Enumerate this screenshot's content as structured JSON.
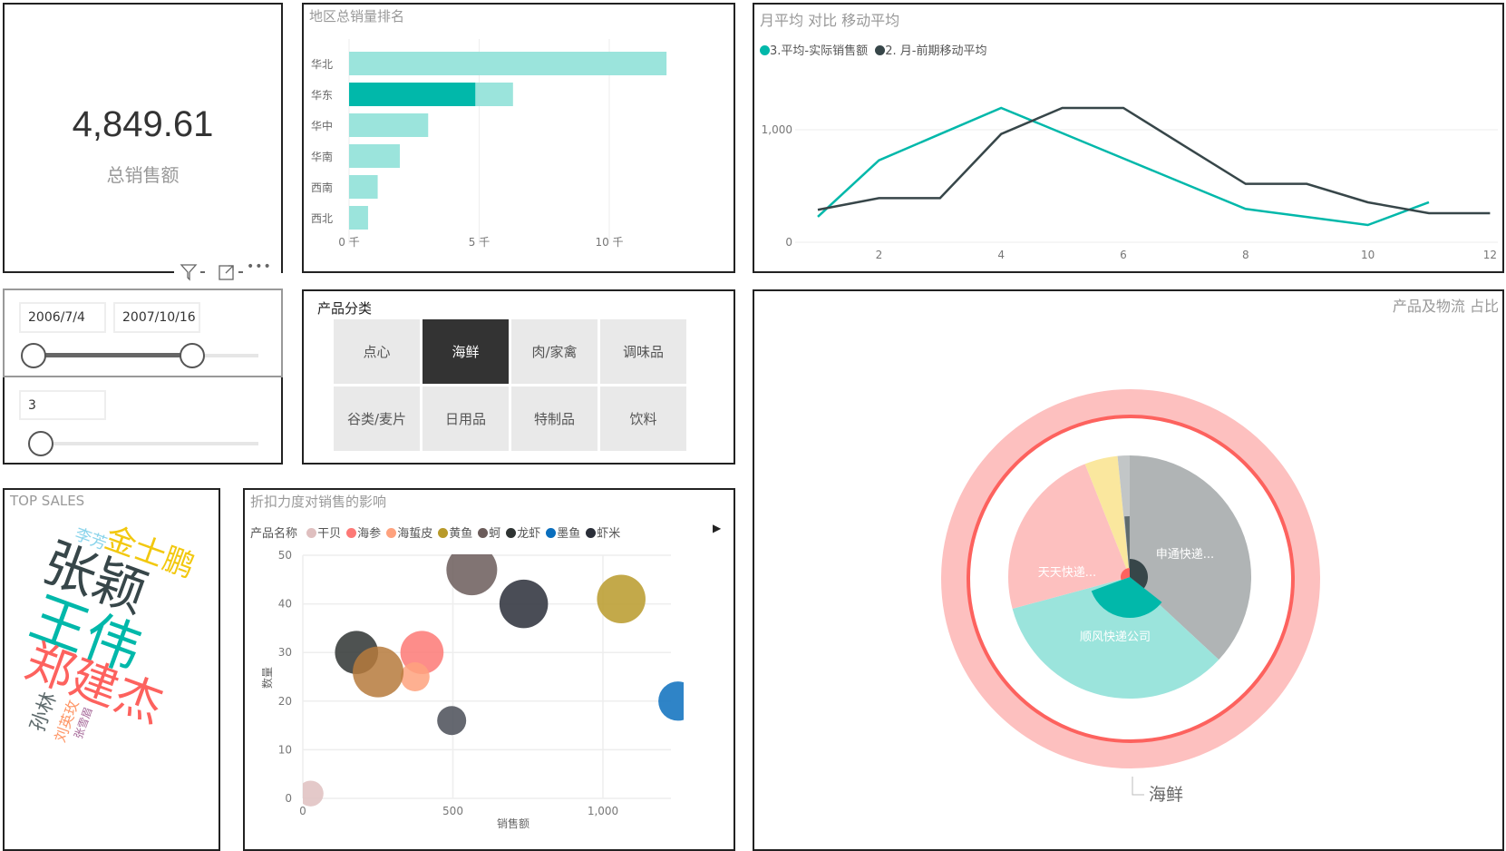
{
  "card": {
    "value": "4,849.61",
    "label": "总销售额"
  },
  "visual_header": {
    "icons": [
      "filter-icon",
      "focus-mode-icon",
      "more-options-icon"
    ]
  },
  "date_slicer": {
    "start": "2006/7/4",
    "end": "2007/10/16",
    "range_fraction": [
      0.0,
      0.69
    ]
  },
  "number_slicer": {
    "value": "3",
    "fraction": 0.0
  },
  "category_slicer": {
    "title": "产品分类",
    "items": [
      "点心",
      "海鲜",
      "肉/家禽",
      "调味品",
      "谷类/麦片",
      "日用品",
      "特制品",
      "饮料"
    ],
    "selected": "海鲜"
  },
  "colors": {
    "teal": "#01b8aa",
    "teal_light": "#9be4dc",
    "dark": "#374649",
    "red": "#fd625e",
    "pink": "#fdc0bf"
  },
  "chart_data": [
    {
      "type": "bar",
      "title": "地区总销量排名",
      "orientation": "horizontal",
      "categories": [
        "华北",
        "华东",
        "华中",
        "华南",
        "西南",
        "西北"
      ],
      "values": [
        12200,
        6300,
        3040,
        1950,
        1100,
        730
      ],
      "highlighted_values": [
        null,
        4850,
        null,
        null,
        null,
        null
      ],
      "xticks": [
        {
          "v": 0,
          "label": "0 千"
        },
        {
          "v": 5000,
          "label": "5 千"
        },
        {
          "v": 10000,
          "label": "10 千"
        }
      ],
      "xlim": [
        0,
        15000
      ],
      "grid": true
    },
    {
      "type": "line",
      "title": "月平均 对比 移动平均",
      "legend_position": "top-left",
      "x": [
        1,
        2,
        3,
        4,
        5,
        6,
        7,
        8,
        9,
        10,
        11,
        12
      ],
      "series": [
        {
          "name": "3.平均-实际销售额",
          "color": "#01b8aa",
          "values": [
            226,
            728,
            961,
            1194,
            970,
            745,
            520,
            296,
            225,
            153,
            355,
            null
          ]
        },
        {
          "name": "2. 月-前期移动平均",
          "color": "#374649",
          "values": [
            288,
            392,
            392,
            962,
            1194,
            1194,
            855,
            519,
            519,
            355,
            258,
            258
          ]
        }
      ],
      "xticks": [
        2,
        4,
        6,
        8,
        10,
        12
      ],
      "yticks": [
        {
          "v": 0,
          "label": "0"
        },
        {
          "v": 1000,
          "label": "1,000"
        }
      ],
      "xlim": [
        1,
        12
      ],
      "ylim": [
        0,
        1450
      ],
      "grid": true
    },
    {
      "type": "scatter",
      "title": "折扣力度对销售的影响",
      "legend_title": "产品名称",
      "legend": [
        {
          "name": "干贝",
          "color": "#dfbfbf"
        },
        {
          "name": "海参",
          "color": "#fd7976"
        },
        {
          "name": "海蜇皮",
          "color": "#fea27e"
        },
        {
          "name": "黄鱼",
          "color": "#b89a2a"
        },
        {
          "name": "蚵",
          "color": "#6b5c5a"
        },
        {
          "name": "龙虾",
          "color": "#2f3433"
        },
        {
          "name": "墨鱼",
          "color": "#0a6ebd"
        },
        {
          "name": "虾米",
          "color": "#2a2e38"
        }
      ],
      "points": [
        {
          "name": "干贝",
          "x": 26,
          "y": 1,
          "size": 18,
          "color": "#dfbfbf"
        },
        {
          "name": "海参",
          "x": 397,
          "y": 30,
          "size": 68,
          "color": "#fd7976"
        },
        {
          "name": "海蜇皮",
          "x": 374,
          "y": 25,
          "size": 25,
          "color": "#fea27e"
        },
        {
          "name": "黄鱼",
          "x": 1061,
          "y": 41,
          "size": 90,
          "color": "#b89a2a"
        },
        {
          "name": "蚵",
          "x": 563,
          "y": 47,
          "size": 100,
          "color": "#6b5c5a"
        },
        {
          "name": "龙虾",
          "x": 179,
          "y": 30,
          "size": 68,
          "color": "#2f3433"
        },
        {
          "name": "虾米",
          "x": 736,
          "y": 40,
          "size": 90,
          "color": "#2a2e38"
        },
        {
          "name": "",
          "x": 496,
          "y": 16,
          "size": 25,
          "color": "#4a4e57"
        },
        {
          "name": "",
          "x": 251,
          "y": 26,
          "size": 100,
          "color": "#b67a3c"
        },
        {
          "name": "墨鱼",
          "x": 1250,
          "y": 20,
          "size": 54,
          "color": "#0a6ebd"
        }
      ],
      "xlabel": "销售额",
      "ylabel": "数量",
      "xticks": [
        {
          "v": 0,
          "label": "0"
        },
        {
          "v": 500,
          "label": "500"
        },
        {
          "v": 1000,
          "label": "1,000"
        }
      ],
      "yticks": [
        0,
        10,
        20,
        30,
        40,
        50
      ],
      "xlim": [
        0,
        1400
      ],
      "ylim": [
        0,
        50
      ],
      "grid": true
    },
    {
      "type": "pie",
      "title": "产品及物流 占比",
      "outer_label": "海鲜",
      "slices": [
        {
          "label": "申通快递...",
          "value": 36.9,
          "color": "#b0b4b5"
        },
        {
          "label": "顺风快递公司",
          "value": 33.9,
          "color": "#9be4dc"
        },
        {
          "label": "天天快递...",
          "value": 23.2,
          "color": "#fdc0bf"
        },
        {
          "label": "",
          "value": 4.4,
          "color": "#fae79e"
        },
        {
          "label": "",
          "value": 1.6,
          "color": "#c2c6c7"
        }
      ]
    }
  ],
  "top_sales": {
    "title": "TOP SALES",
    "words": [
      {
        "text": "张颖",
        "color": "#374649"
      },
      {
        "text": "王伟",
        "color": "#01b8aa"
      },
      {
        "text": "郑建杰",
        "color": "#fd625e"
      },
      {
        "text": "金士鹏",
        "color": "#f2c80f"
      },
      {
        "text": "李芳",
        "color": "#8ad4eb"
      },
      {
        "text": "孙林",
        "color": "#5f6b6d"
      },
      {
        "text": "刘英玫",
        "color": "#fe9666"
      },
      {
        "text": "张雪眉",
        "color": "#a66999"
      }
    ]
  }
}
